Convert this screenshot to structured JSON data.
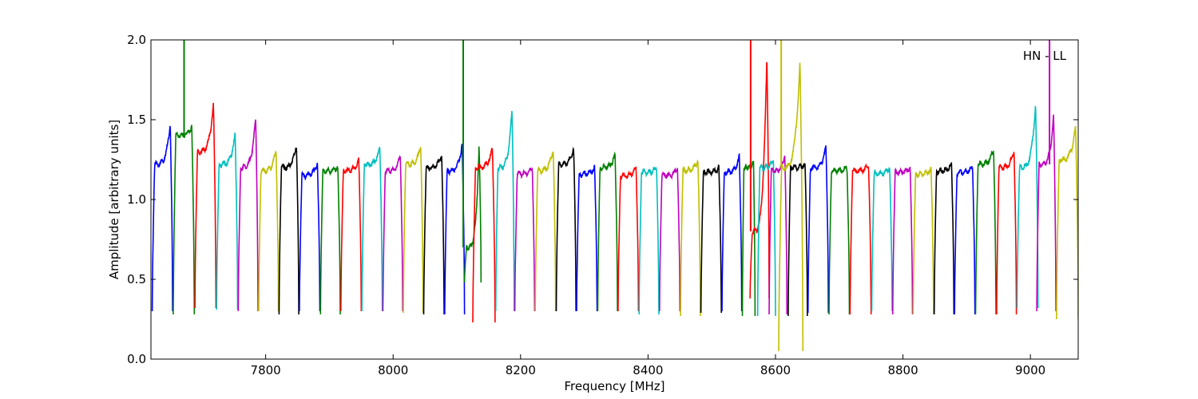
{
  "chart_data": {
    "type": "line",
    "title": "",
    "xlabel": "Frequency [MHz]",
    "ylabel": "Amplitude [arbitrary units]",
    "xlim": [
      7620,
      9075
    ],
    "ylim": [
      0.0,
      2.0
    ],
    "xticks": [
      7800,
      8000,
      8200,
      8400,
      8600,
      8800,
      9000
    ],
    "yticks": [
      0.0,
      0.5,
      1.0,
      1.5,
      2.0
    ],
    "ytick_labels": [
      "0.0",
      "0.5",
      "1.0",
      "1.5",
      "2.0"
    ],
    "xtick_labels": [
      "7800",
      "8000",
      "8200",
      "8400",
      "8600",
      "8800",
      "9000"
    ],
    "grid": false,
    "annotation": "HN - LL",
    "color_cycle": [
      "#0000ff",
      "#008000",
      "#ff0000",
      "#00bfbf",
      "#bf00bf",
      "#bfbf00",
      "#000000"
    ],
    "series": [
      {
        "x_start": 7622,
        "x_end": 7654,
        "level": 1.22,
        "peak": 1.48,
        "edge": 0.3
      },
      {
        "x_start": 7655,
        "x_end": 7688,
        "level": 1.4,
        "peak": 1.46,
        "edge": 0.28,
        "spike_x": 7672,
        "spike_y": 2.0
      },
      {
        "x_start": 7689,
        "x_end": 7722,
        "level": 1.3,
        "peak": 1.6,
        "edge": 0.32
      },
      {
        "x_start": 7723,
        "x_end": 7756,
        "level": 1.22,
        "peak": 1.41,
        "edge": 0.31
      },
      {
        "x_start": 7757,
        "x_end": 7788,
        "level": 1.2,
        "peak": 1.51,
        "edge": 0.3
      },
      {
        "x_start": 7789,
        "x_end": 7820,
        "level": 1.18,
        "peak": 1.31,
        "edge": 0.3
      },
      {
        "x_start": 7821,
        "x_end": 7852,
        "level": 1.2,
        "peak": 1.35,
        "edge": 0.28
      },
      {
        "x_start": 7853,
        "x_end": 7885,
        "level": 1.15,
        "peak": 1.23,
        "edge": 0.3
      },
      {
        "x_start": 7886,
        "x_end": 7917,
        "level": 1.18,
        "peak": 1.2,
        "edge": 0.28
      },
      {
        "x_start": 7918,
        "x_end": 7950,
        "level": 1.18,
        "peak": 1.25,
        "edge": 0.3
      },
      {
        "x_start": 7951,
        "x_end": 7983,
        "level": 1.22,
        "peak": 1.32,
        "edge": 0.3
      },
      {
        "x_start": 7984,
        "x_end": 8015,
        "level": 1.18,
        "peak": 1.27,
        "edge": 0.3
      },
      {
        "x_start": 8016,
        "x_end": 8047,
        "level": 1.22,
        "peak": 1.34,
        "edge": 0.29
      },
      {
        "x_start": 8048,
        "x_end": 8080,
        "level": 1.2,
        "peak": 1.28,
        "edge": 0.28
      },
      {
        "x_start": 8081,
        "x_end": 8112,
        "level": 1.18,
        "peak": 1.35,
        "edge": 0.28
      },
      {
        "x_start": 8112,
        "x_end": 8138,
        "level": 0.7,
        "peak": 1.33,
        "edge": 0.48,
        "spike_x": 8110,
        "spike_y": 2.0
      },
      {
        "x_start": 8125,
        "x_end": 8160,
        "level": 1.2,
        "peak": 1.32,
        "edge": 0.23
      },
      {
        "x_start": 8161,
        "x_end": 8190,
        "level": 1.2,
        "peak": 1.57,
        "edge": 0.3
      },
      {
        "x_start": 8191,
        "x_end": 8222,
        "level": 1.16,
        "peak": 1.2,
        "edge": 0.3
      },
      {
        "x_start": 8223,
        "x_end": 8255,
        "level": 1.18,
        "peak": 1.32,
        "edge": 0.3
      },
      {
        "x_start": 8256,
        "x_end": 8287,
        "level": 1.22,
        "peak": 1.32,
        "edge": 0.3
      },
      {
        "x_start": 8288,
        "x_end": 8320,
        "level": 1.16,
        "peak": 1.2,
        "edge": 0.3
      },
      {
        "x_start": 8321,
        "x_end": 8352,
        "level": 1.2,
        "peak": 1.28,
        "edge": 0.3
      },
      {
        "x_start": 8353,
        "x_end": 8385,
        "level": 1.15,
        "peak": 1.2,
        "edge": 0.3
      },
      {
        "x_start": 8386,
        "x_end": 8417,
        "level": 1.17,
        "peak": 1.2,
        "edge": 0.28
      },
      {
        "x_start": 8418,
        "x_end": 8450,
        "level": 1.15,
        "peak": 1.2,
        "edge": 0.3
      },
      {
        "x_start": 8451,
        "x_end": 8482,
        "level": 1.18,
        "peak": 1.25,
        "edge": 0.27
      },
      {
        "x_start": 8483,
        "x_end": 8515,
        "level": 1.17,
        "peak": 1.2,
        "edge": 0.29
      },
      {
        "x_start": 8516,
        "x_end": 8547,
        "level": 1.17,
        "peak": 1.27,
        "edge": 0.3
      },
      {
        "x_start": 8548,
        "x_end": 8568,
        "level": 1.2,
        "peak": 1.23,
        "edge": 0.27
      },
      {
        "x_start": 8560,
        "x_end": 8590,
        "level": 0.8,
        "peak": 1.9,
        "edge": 0.38,
        "spike_x": 8561,
        "spike_y": 2.0
      },
      {
        "x_start": 8572,
        "x_end": 8600,
        "level": 1.2,
        "peak": 1.25,
        "edge": 0.27
      },
      {
        "x_start": 8590,
        "x_end": 8618,
        "level": 1.18,
        "peak": 1.28,
        "edge": 0.28
      },
      {
        "x_start": 8605,
        "x_end": 8643,
        "level": 1.2,
        "peak": 1.86,
        "edge": 0.05,
        "spike_x": 8609,
        "spike_y": 2.0
      },
      {
        "x_start": 8620,
        "x_end": 8650,
        "level": 1.2,
        "peak": 1.22,
        "edge": 0.27
      },
      {
        "x_start": 8651,
        "x_end": 8683,
        "level": 1.2,
        "peak": 1.33,
        "edge": 0.29
      },
      {
        "x_start": 8684,
        "x_end": 8716,
        "level": 1.18,
        "peak": 1.2,
        "edge": 0.28
      },
      {
        "x_start": 8717,
        "x_end": 8750,
        "level": 1.18,
        "peak": 1.21,
        "edge": 0.28
      },
      {
        "x_start": 8751,
        "x_end": 8783,
        "level": 1.16,
        "peak": 1.2,
        "edge": 0.3
      },
      {
        "x_start": 8784,
        "x_end": 8815,
        "level": 1.17,
        "peak": 1.2,
        "edge": 0.28
      },
      {
        "x_start": 8816,
        "x_end": 8848,
        "level": 1.16,
        "peak": 1.19,
        "edge": 0.28
      },
      {
        "x_start": 8849,
        "x_end": 8880,
        "level": 1.18,
        "peak": 1.22,
        "edge": 0.28
      },
      {
        "x_start": 8881,
        "x_end": 8913,
        "level": 1.17,
        "peak": 1.2,
        "edge": 0.28
      },
      {
        "x_start": 8914,
        "x_end": 8946,
        "level": 1.22,
        "peak": 1.32,
        "edge": 0.28
      },
      {
        "x_start": 8947,
        "x_end": 8978,
        "level": 1.2,
        "peak": 1.31,
        "edge": 0.28
      },
      {
        "x_start": 8979,
        "x_end": 9012,
        "level": 1.2,
        "peak": 1.6,
        "edge": 0.32
      },
      {
        "x_start": 9010,
        "x_end": 9040,
        "level": 1.22,
        "peak": 1.52,
        "edge": 0.3,
        "spike_x": 9030,
        "spike_y": 2.0
      },
      {
        "x_start": 9041,
        "x_end": 9075,
        "level": 1.25,
        "peak": 1.46,
        "edge": 0.25
      }
    ]
  }
}
